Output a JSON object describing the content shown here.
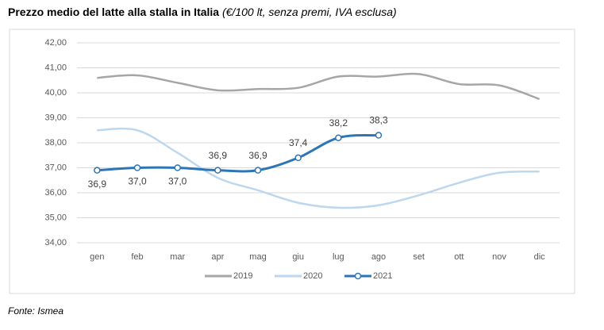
{
  "chart_data": {
    "type": "line",
    "title": "Prezzo medio del latte alla stalla in Italia",
    "subtitle": "(€/100 lt, senza premi, IVA esclusa)",
    "source": "Fonte: Ismea",
    "categories": [
      "gen",
      "feb",
      "mar",
      "apr",
      "mag",
      "giu",
      "lug",
      "ago",
      "set",
      "ott",
      "nov",
      "dic"
    ],
    "ylim": [
      34,
      42
    ],
    "yticks": [
      {
        "value": 34,
        "label": "34,00"
      },
      {
        "value": 35,
        "label": "35,00"
      },
      {
        "value": 36,
        "label": "36,00"
      },
      {
        "value": 37,
        "label": "37,00"
      },
      {
        "value": 38,
        "label": "38,00"
      },
      {
        "value": 39,
        "label": "39,00"
      },
      {
        "value": 40,
        "label": "40,00"
      },
      {
        "value": 41,
        "label": "41,00"
      },
      {
        "value": 42,
        "label": "42,00"
      }
    ],
    "grid": true,
    "legend": "bottom",
    "series": [
      {
        "name": "2019",
        "color": "#a6a6a6",
        "values": [
          40.6,
          40.7,
          40.4,
          40.1,
          40.15,
          40.2,
          40.65,
          40.65,
          40.75,
          40.35,
          40.3,
          39.75
        ]
      },
      {
        "name": "2020",
        "color": "#bdd7ee",
        "values": [
          38.5,
          38.5,
          37.6,
          36.6,
          36.1,
          35.6,
          35.4,
          35.5,
          35.9,
          36.4,
          36.8,
          36.85
        ]
      },
      {
        "name": "2021",
        "color": "#2e75b6",
        "markers": true,
        "values": [
          36.9,
          37.0,
          37.0,
          36.9,
          36.9,
          37.4,
          38.2,
          38.3,
          null,
          null,
          null,
          null
        ],
        "value_labels": [
          "36,9",
          "37,0",
          "37,0",
          "36,9",
          "36,9",
          "37,4",
          "38,2",
          "38,3",
          null,
          null,
          null,
          null
        ]
      }
    ]
  }
}
